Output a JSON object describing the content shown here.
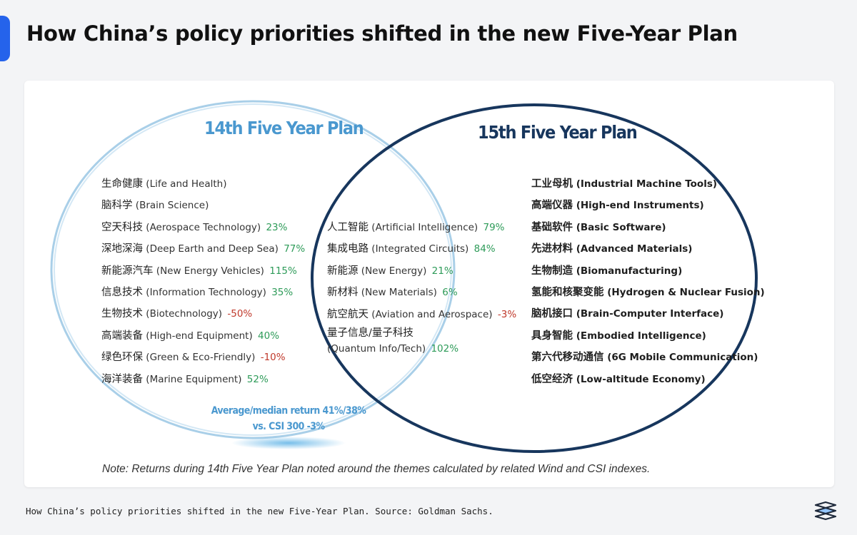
{
  "header": {
    "title": "How China’s policy priorities shifted in the new Five-Year Plan"
  },
  "diagram": {
    "plan14_title": "14th Five Year Plan",
    "plan15_title": "15th Five Year Plan",
    "plan14_only": [
      {
        "zh": "生命健康",
        "en": "(Life and Health)",
        "ret": "",
        "tone": "none"
      },
      {
        "zh": "脑科学",
        "en": "(Brain Science)",
        "ret": "",
        "tone": "none"
      },
      {
        "zh": "空天科技",
        "en": "(Aerospace Technology)",
        "ret": "23%",
        "tone": "pos"
      },
      {
        "zh": "深地深海",
        "en": "(Deep Earth and Deep Sea)",
        "ret": "77%",
        "tone": "pos"
      },
      {
        "zh": "新能源汽车",
        "en": "(New Energy Vehicles)",
        "ret": "115%",
        "tone": "pos"
      },
      {
        "zh": "信息技术",
        "en": "(Information Technology)",
        "ret": "35%",
        "tone": "pos"
      },
      {
        "zh": "生物技术",
        "en": "(Biotechnology)",
        "ret": "-50%",
        "tone": "neg"
      },
      {
        "zh": "高端装备",
        "en": "(High-end Equipment)",
        "ret": "40%",
        "tone": "pos"
      },
      {
        "zh": "绿色环保",
        "en": "(Green & Eco-Friendly)",
        "ret": "-10%",
        "tone": "neg"
      },
      {
        "zh": "海洋装备",
        "en": "(Marine Equipment)",
        "ret": "52%",
        "tone": "pos"
      }
    ],
    "overlap": [
      {
        "zh": "人工智能",
        "en": "(Artificial Intelligence)",
        "ret": "79%",
        "tone": "pos"
      },
      {
        "zh": "集成电路",
        "en": "(Integrated Circuits)",
        "ret": "84%",
        "tone": "pos"
      },
      {
        "zh": "新能源",
        "en": "(New Energy)",
        "ret": "21%",
        "tone": "pos"
      },
      {
        "zh": "新材料",
        "en": "(New Materials)",
        "ret": "6%",
        "tone": "pos"
      },
      {
        "zh": "航空航天",
        "en": "(Aviation and Aerospace)",
        "ret": "-3%",
        "tone": "neg"
      },
      {
        "zh": "量子信息/量子科技",
        "en": "(Quantum Info/Tech)",
        "ret": "102%",
        "tone": "pos",
        "two_line": true
      }
    ],
    "plan15_only": [
      {
        "zh": "工业母机",
        "en": "(Industrial Machine Tools)"
      },
      {
        "zh": "高端仪器",
        "en": "(High-end Instruments)"
      },
      {
        "zh": "基础软件",
        "en": "(Basic Software)"
      },
      {
        "zh": "先进材料",
        "en": "(Advanced Materials)"
      },
      {
        "zh": "生物制造",
        "en": "(Biomanufacturing)"
      },
      {
        "zh": "氢能和核聚变能",
        "en": "(Hydrogen & Nuclear Fusion)"
      },
      {
        "zh": "脑机接口",
        "en": "(Brain-Computer Interface)"
      },
      {
        "zh": "具身智能",
        "en": "(Embodied Intelligence)"
      },
      {
        "zh": "第六代移动通信",
        "en": "(6G Mobile Communication)"
      },
      {
        "zh": "低空经济",
        "en": "(Low-altitude Economy)"
      }
    ],
    "summary_line1": "Average/median return 41%/38%",
    "summary_line2": "vs. CSI 300 -3%",
    "note": "Note: Returns during 14th Five Year Plan noted around the themes calculated by related Wind and CSI indexes."
  },
  "footer": {
    "caption": "How China’s policy priorities shifted in the new Five-Year Plan. Source: Goldman Sachs.",
    "logo_icon": "brand-logo-icon"
  },
  "colors": {
    "accent": "#2563eb",
    "plan14_circle": "#a9cfe8",
    "plan15_circle": "#17365d",
    "positive": "#2e9b59",
    "negative": "#c0392b"
  }
}
